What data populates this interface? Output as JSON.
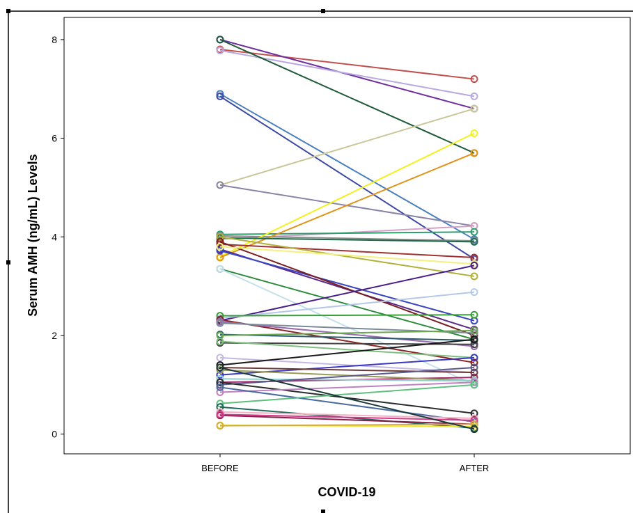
{
  "chart_data": {
    "type": "line",
    "categories": [
      "BEFORE",
      "AFTER"
    ],
    "xlabel": "COVID-19",
    "ylabel": "Serum AMH (ng/mL) Levels",
    "ylim": [
      -0.4,
      8.45
    ],
    "yticks": [
      0,
      2,
      4,
      6,
      8
    ],
    "grid": false,
    "legend": "none",
    "series": [
      {
        "color": "#c0504d",
        "values": [
          7.8,
          7.2
        ]
      },
      {
        "color": "#7030a0",
        "values": [
          8.0,
          6.6
        ]
      },
      {
        "color": "#b8a9e0",
        "values": [
          7.78,
          6.85
        ]
      },
      {
        "color": "#1f5b3a",
        "values": [
          8.0,
          5.7
        ]
      },
      {
        "color": "#4a7fbf",
        "values": [
          6.9,
          3.95
        ]
      },
      {
        "color": "#3d4aa3",
        "values": [
          6.85,
          3.55
        ]
      },
      {
        "color": "#c9c79a",
        "values": [
          5.05,
          6.6
        ]
      },
      {
        "color": "#8a84a8",
        "values": [
          5.05,
          4.22
        ]
      },
      {
        "color": "#d4a0c8",
        "values": [
          3.95,
          4.22
        ]
      },
      {
        "color": "#2e9e6e",
        "values": [
          4.05,
          4.1
        ]
      },
      {
        "color": "#8a8a8a",
        "values": [
          4.02,
          3.92
        ]
      },
      {
        "color": "#f2f21a",
        "values": [
          3.6,
          6.1
        ]
      },
      {
        "color": "#e0941b",
        "values": [
          3.58,
          5.7
        ]
      },
      {
        "color": "#1e6b4a",
        "values": [
          3.98,
          3.9
        ]
      },
      {
        "color": "#a33030",
        "values": [
          3.85,
          3.58
        ]
      },
      {
        "color": "#b0b03a",
        "values": [
          4.0,
          3.2
        ]
      },
      {
        "color": "#5a2a8a",
        "values": [
          3.75,
          2.12
        ]
      },
      {
        "color": "#3a45c0",
        "values": [
          3.72,
          2.3
        ]
      },
      {
        "color": "#7a1f1f",
        "values": [
          3.9,
          2.0
        ]
      },
      {
        "color": "#f4f07a",
        "values": [
          3.8,
          3.45
        ]
      },
      {
        "color": "#2a8a3a",
        "values": [
          3.35,
          1.92
        ]
      },
      {
        "color": "#c4e0ea",
        "values": [
          3.35,
          1.0
        ]
      },
      {
        "color": "#4a1e8a",
        "values": [
          2.3,
          3.42
        ]
      },
      {
        "color": "#b4c8e8",
        "values": [
          2.35,
          2.88
        ]
      },
      {
        "color": "#3aa03a",
        "values": [
          2.4,
          2.42
        ]
      },
      {
        "color": "#8b2323",
        "values": [
          2.32,
          1.45
        ]
      },
      {
        "color": "#9b6bb0",
        "values": [
          2.28,
          1.78
        ]
      },
      {
        "color": "#7a8a9a",
        "values": [
          2.25,
          2.05
        ]
      },
      {
        "color": "#2a5a6a",
        "values": [
          2.02,
          1.9
        ]
      },
      {
        "color": "#6aa84f",
        "values": [
          2.0,
          2.1
        ]
      },
      {
        "color": "#444444",
        "values": [
          1.85,
          1.82
        ]
      },
      {
        "color": "#7fbf7f",
        "values": [
          1.88,
          1.55
        ]
      },
      {
        "color": "#c5b8e0",
        "values": [
          1.55,
          1.25
        ]
      },
      {
        "color": "#1a1a1a",
        "values": [
          1.4,
          1.92
        ]
      },
      {
        "color": "#3a3ac0",
        "values": [
          1.2,
          1.55
        ]
      },
      {
        "color": "#a02a6a",
        "values": [
          1.05,
          1.15
        ]
      },
      {
        "color": "#9a9a5a",
        "values": [
          1.3,
          1.08
        ]
      },
      {
        "color": "#6a3a3a",
        "values": [
          1.35,
          1.25
        ]
      },
      {
        "color": "#8fcfcf",
        "values": [
          1.12,
          1.08
        ]
      },
      {
        "color": "#5a5a8a",
        "values": [
          1.0,
          1.35
        ]
      },
      {
        "color": "#2a2a2a",
        "values": [
          1.05,
          0.42
        ]
      },
      {
        "color": "#c080c0",
        "values": [
          0.85,
          1.05
        ]
      },
      {
        "color": "#4a6aa0",
        "values": [
          0.95,
          0.25
        ]
      },
      {
        "color": "#5fbf7f",
        "values": [
          0.62,
          1.0
        ]
      },
      {
        "color": "#1f6a5a",
        "values": [
          0.55,
          0.12
        ]
      },
      {
        "color": "#f2b0c0",
        "values": [
          0.45,
          0.32
        ]
      },
      {
        "color": "#8a1f4a",
        "values": [
          0.38,
          0.2
        ]
      },
      {
        "color": "#d63a8a",
        "values": [
          0.4,
          0.28
        ]
      },
      {
        "color": "#e8e840",
        "values": [
          0.18,
          0.15
        ]
      },
      {
        "color": "#d4a84a",
        "values": [
          0.17,
          0.2
        ]
      },
      {
        "color": "#1a3a3a",
        "values": [
          1.35,
          0.1
        ]
      }
    ]
  }
}
